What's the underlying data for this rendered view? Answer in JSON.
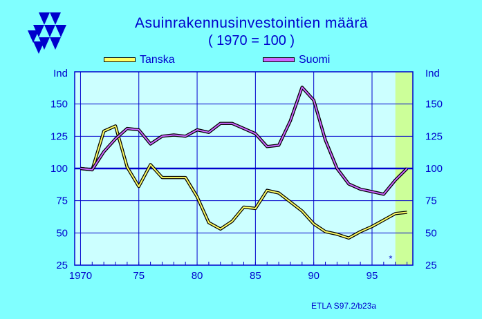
{
  "chart_data": {
    "type": "line",
    "title": "Asuinrakennusinvestointien  määrä",
    "subtitle": "( 1970 = 100 )",
    "ylabel_left": "Ind",
    "ylabel_right": "Ind",
    "ylim": [
      25,
      175
    ],
    "xlim": [
      1969.5,
      1998.5
    ],
    "y_ticks": [
      25,
      50,
      75,
      100,
      125,
      150
    ],
    "x_tick_labels": [
      "1970",
      "75",
      "80",
      "85",
      "90",
      "95"
    ],
    "x_tick_values": [
      1970,
      1975,
      1980,
      1985,
      1990,
      1995
    ],
    "forecast_region": [
      1997,
      1998.5
    ],
    "forecast_marker": "*",
    "reference_line": 100,
    "legend_position": "top",
    "series": [
      {
        "name": "Tanska",
        "color": "#ffff66",
        "x": [
          1970,
          1971,
          1972,
          1973,
          1974,
          1975,
          1976,
          1977,
          1978,
          1979,
          1980,
          1981,
          1982,
          1983,
          1984,
          1985,
          1986,
          1987,
          1988,
          1989,
          1990,
          1991,
          1992,
          1993,
          1994,
          1995,
          1996,
          1997,
          1998
        ],
        "values": [
          100,
          99,
          129,
          133,
          101,
          86,
          103,
          93,
          93,
          93,
          78,
          58,
          53,
          59,
          70,
          69,
          83,
          81,
          74,
          67,
          57,
          51,
          49,
          46,
          51,
          55,
          60,
          65,
          66
        ]
      },
      {
        "name": "Suomi",
        "color": "#cc66ff",
        "x": [
          1970,
          1971,
          1972,
          1973,
          1974,
          1975,
          1976,
          1977,
          1978,
          1979,
          1980,
          1981,
          1982,
          1983,
          1984,
          1985,
          1986,
          1987,
          1988,
          1989,
          1990,
          1991,
          1992,
          1993,
          1994,
          1995,
          1996,
          1997,
          1998
        ],
        "values": [
          100,
          99,
          113,
          123,
          131,
          130,
          119,
          125,
          126,
          125,
          130,
          128,
          135,
          135,
          131,
          127,
          117,
          118,
          137,
          163,
          153,
          122,
          100,
          88,
          84,
          82,
          80,
          91,
          100
        ]
      }
    ]
  },
  "source": "ETLA S97.2/b23a",
  "colors": {
    "background": "#80ffff",
    "plot_bg": "#ccffff",
    "forecast_bg": "#ccff99",
    "axis_text": "#0000cc",
    "grid": "#0000cc"
  }
}
